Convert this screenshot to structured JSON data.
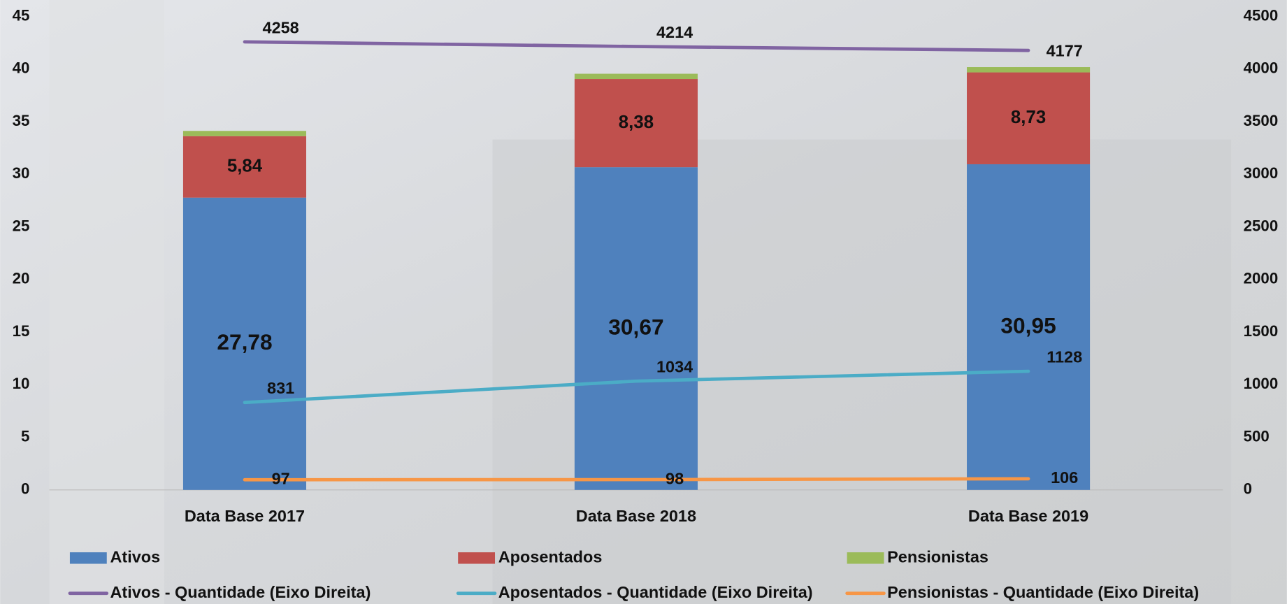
{
  "chart_data": {
    "type": "bar",
    "categories": [
      "Data Base 2017",
      "Data Base 2018",
      "Data Base 2019"
    ],
    "ylim": [
      0,
      45
    ],
    "yticks": [
      0,
      5,
      10,
      15,
      20,
      25,
      30,
      35,
      40,
      45
    ],
    "y2lim": [
      0,
      4500
    ],
    "y2ticks": [
      0,
      500,
      1000,
      1500,
      2000,
      2500,
      3000,
      3500,
      4000,
      4500
    ],
    "stacked": true,
    "series": [
      {
        "name": "Ativos",
        "type": "bar",
        "color": "#4f81bd",
        "values": [
          27.78,
          30.67,
          30.95
        ],
        "value_labels": [
          "27,78",
          "30,67",
          "30,95"
        ]
      },
      {
        "name": "Aposentados",
        "type": "bar",
        "color": "#c0504d",
        "values": [
          5.84,
          8.38,
          8.73
        ],
        "value_labels": [
          "5,84",
          "8,38",
          "8,73"
        ]
      },
      {
        "name": "Pensionistas",
        "type": "bar",
        "color": "#9bbb59",
        "values": [
          0.5,
          0.5,
          0.5
        ]
      },
      {
        "name": "Ativos - Quantidade (Eixo Direita)",
        "type": "line",
        "axis": "y2",
        "color": "#8064a2",
        "values": [
          4258,
          4214,
          4177
        ]
      },
      {
        "name": "Aposentados - Quantidade (Eixo Direita)",
        "type": "line",
        "axis": "y2",
        "color": "#4bacc6",
        "values": [
          831,
          1034,
          1128
        ]
      },
      {
        "name": "Pensionistas - Quantidade (Eixo Direita)",
        "type": "line",
        "axis": "y2",
        "color": "#f79646",
        "values": [
          97,
          98,
          106
        ]
      }
    ]
  }
}
